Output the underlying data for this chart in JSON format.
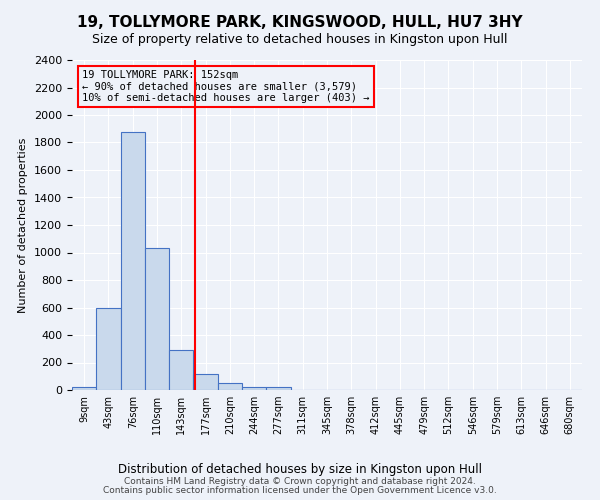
{
  "title": "19, TOLLYMORE PARK, KINGSWOOD, HULL, HU7 3HY",
  "subtitle": "Size of property relative to detached houses in Kingston upon Hull",
  "xlabel": "Distribution of detached houses by size in Kingston upon Hull",
  "ylabel": "Number of detached properties",
  "footnote1": "Contains HM Land Registry data © Crown copyright and database right 2024.",
  "footnote2": "Contains public sector information licensed under the Open Government Licence v3.0.",
  "bin_labels": [
    "9sqm",
    "43sqm",
    "76sqm",
    "110sqm",
    "143sqm",
    "177sqm",
    "210sqm",
    "244sqm",
    "277sqm",
    "311sqm",
    "345sqm",
    "378sqm",
    "412sqm",
    "445sqm",
    "479sqm",
    "512sqm",
    "546sqm",
    "579sqm",
    "613sqm",
    "646sqm",
    "680sqm"
  ],
  "bar_values": [
    20,
    600,
    1880,
    1030,
    290,
    115,
    50,
    25,
    20,
    0,
    0,
    0,
    0,
    0,
    0,
    0,
    0,
    0,
    0,
    0,
    0
  ],
  "bar_color": "#c9d9ec",
  "bar_edge_color": "#4472c4",
  "ylim": [
    0,
    2400
  ],
  "yticks": [
    0,
    200,
    400,
    600,
    800,
    1000,
    1200,
    1400,
    1600,
    1800,
    2000,
    2200,
    2400
  ],
  "vline_x": 4.55,
  "annotation_title": "19 TOLLYMORE PARK: 152sqm",
  "annotation_line1": "← 90% of detached houses are smaller (3,579)",
  "annotation_line2": "10% of semi-detached houses are larger (403) →",
  "background_color": "#eef2f9"
}
